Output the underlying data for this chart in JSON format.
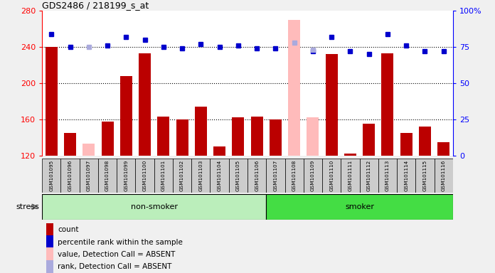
{
  "title": "GDS2486 / 218199_s_at",
  "samples": [
    "GSM101095",
    "GSM101096",
    "GSM101097",
    "GSM101098",
    "GSM101099",
    "GSM101100",
    "GSM101101",
    "GSM101102",
    "GSM101103",
    "GSM101104",
    "GSM101105",
    "GSM101106",
    "GSM101107",
    "GSM101108",
    "GSM101109",
    "GSM101110",
    "GSM101111",
    "GSM101112",
    "GSM101113",
    "GSM101114",
    "GSM101115",
    "GSM101116"
  ],
  "count_present": [
    240,
    145,
    null,
    158,
    208,
    233,
    163,
    160,
    174,
    130,
    162,
    163,
    160,
    null,
    null,
    232,
    122,
    155,
    233,
    145,
    152,
    135
  ],
  "count_absent": [
    null,
    null,
    133,
    null,
    null,
    null,
    null,
    null,
    null,
    null,
    null,
    null,
    null,
    270,
    162,
    null,
    null,
    null,
    null,
    null,
    null,
    null
  ],
  "rank_present": [
    84,
    75,
    null,
    76,
    82,
    80,
    75,
    74,
    77,
    75,
    76,
    74,
    74,
    null,
    72,
    82,
    72,
    70,
    84,
    76,
    72,
    72
  ],
  "rank_absent": [
    null,
    null,
    75,
    null,
    null,
    null,
    null,
    null,
    null,
    null,
    null,
    null,
    null,
    78,
    73,
    null,
    null,
    null,
    null,
    null,
    null,
    null
  ],
  "non_smoker_count": 12,
  "smoker_count": 10,
  "ylim_left": [
    120,
    280
  ],
  "ylim_right": [
    0,
    100
  ],
  "yticks_left": [
    120,
    160,
    200,
    240,
    280
  ],
  "yticks_right": [
    0,
    25,
    50,
    75,
    100
  ],
  "color_bar_present": "#bb0000",
  "color_bar_absent": "#ffbbbb",
  "color_dot_present": "#0000cc",
  "color_dot_absent": "#aaaadd",
  "color_non_smoker": "#bbeebb",
  "color_smoker": "#44dd44",
  "color_cell_bg": "#cccccc",
  "color_plot_bg": "#ffffff",
  "fig_bg": "#f0f0f0",
  "right_tick_label_100": "100%",
  "legend_items": [
    {
      "color": "#bb0000",
      "label": "count"
    },
    {
      "color": "#0000cc",
      "label": "percentile rank within the sample"
    },
    {
      "color": "#ffbbbb",
      "label": "value, Detection Call = ABSENT"
    },
    {
      "color": "#aaaadd",
      "label": "rank, Detection Call = ABSENT"
    }
  ]
}
